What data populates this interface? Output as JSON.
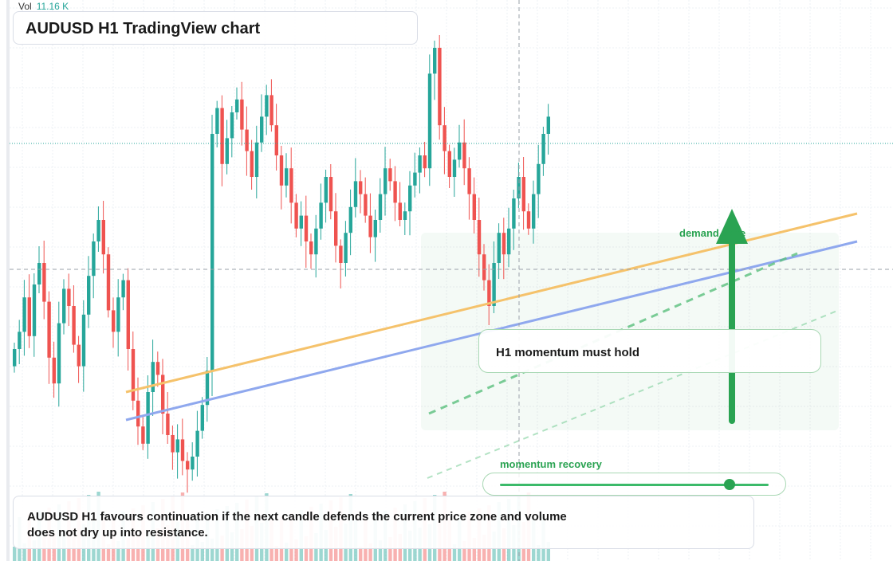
{
  "volume": {
    "label": "Vol",
    "value": "11.16 K"
  },
  "title": "AUDUSD H1 TradingView chart",
  "overlay": {
    "zone_label": "demand zone",
    "hold_label": "H1 momentum must hold",
    "momentum_label": "momentum recovery",
    "momentum_level": 0.85
  },
  "summary": "AUDUSD H1 favours continuation if the next candle defends the current price zone and volume does not dry up into resistance.",
  "colors": {
    "up": "#26a69a",
    "down": "#ef5350",
    "resistance_line": "#f5c26b",
    "support_line": "#8fa8ee",
    "accent": "#2aa352"
  },
  "chart_data": {
    "type": "candlestick",
    "symbol": "AUDUSD",
    "timeframe": "H1",
    "closes": [
      30,
      34,
      42,
      33,
      45,
      50,
      41,
      28,
      22,
      36,
      44,
      40,
      31,
      26,
      38,
      47,
      55,
      60,
      52,
      39,
      34,
      42,
      46,
      30,
      18,
      12,
      8,
      20,
      27,
      24,
      15,
      10,
      6,
      9,
      4,
      2,
      5,
      11,
      17,
      25,
      80,
      86,
      73,
      79,
      85,
      88,
      81,
      76,
      70,
      78,
      84,
      89,
      82,
      75,
      68,
      72,
      64,
      58,
      61,
      55,
      52,
      58,
      64,
      70,
      62,
      54,
      50,
      57,
      63,
      69,
      66,
      61,
      56,
      60,
      66,
      72,
      69,
      64,
      60,
      62,
      68,
      71,
      75,
      72,
      94,
      100,
      82,
      76,
      70,
      74,
      78,
      72,
      66,
      60,
      52,
      46,
      40,
      50,
      57,
      52,
      58,
      65,
      70,
      62,
      58,
      66,
      73,
      80,
      84
    ],
    "volume_note": "volume histogram along the bottom, green for up candles, red for down candles"
  }
}
